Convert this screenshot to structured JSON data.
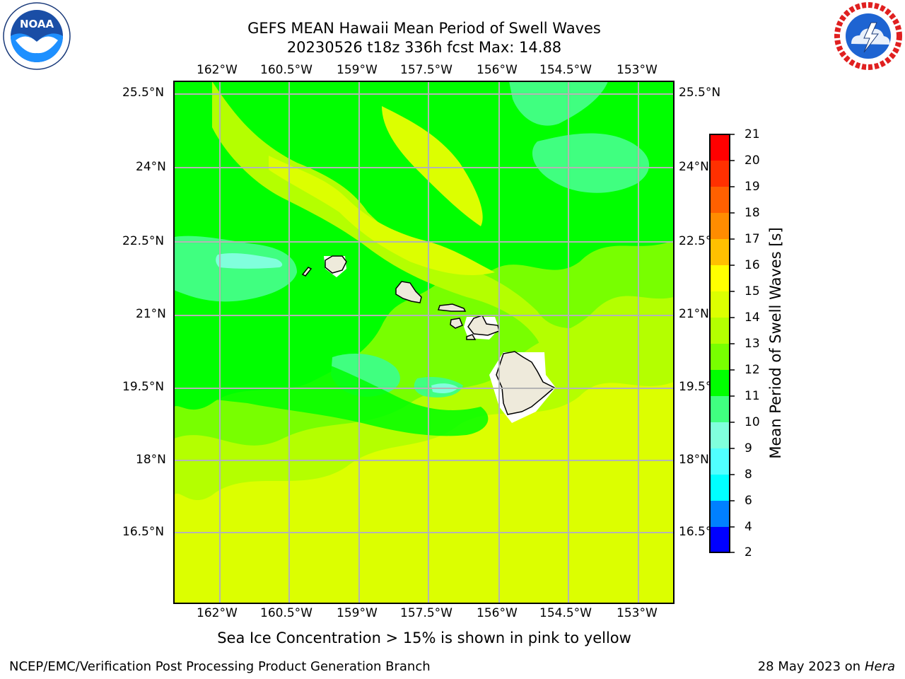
{
  "title_line1": "GEFS MEAN Hawaii Mean Period of Swell Waves",
  "title_line2": "20230526 t18z 336h fcst   Max: 14.88",
  "lon_labels": [
    "162°W",
    "160.5°W",
    "159°W",
    "157.5°W",
    "156°W",
    "154.5°W",
    "153°W"
  ],
  "lat_labels": [
    "25.5°N",
    "24°N",
    "22.5°N",
    "21°N",
    "19.5°N",
    "18°N",
    "16.5°N"
  ],
  "colorbar": {
    "label": "Mean Period of Swell Waves [s]",
    "ticks": [
      "21",
      "20",
      "19",
      "18",
      "17",
      "16",
      "15",
      "14",
      "13",
      "12",
      "11",
      "10",
      "9",
      "8",
      "6",
      "4",
      "2"
    ],
    "colors": [
      "#ff0000",
      "#ff3000",
      "#ff6000",
      "#ff8c00",
      "#ffc000",
      "#ffff00",
      "#dcff00",
      "#b4ff00",
      "#78ff00",
      "#00ff00",
      "#00f050",
      "#40ff80",
      "#80ffdc",
      "#50ffff",
      "#00ffff",
      "#0080ff",
      "#0000ff"
    ]
  },
  "subtitle": "Sea Ice Concentration > 15% is shown in pink to yellow",
  "footer_left": "NCEP/EMC/Verification Post Processing Product Generation Branch",
  "footer_right_date": "28 May 2023 on",
  "footer_right_host": "Hera",
  "logos": {
    "left": "noaa-logo",
    "right": "nws-logo",
    "right_text": "NATIONAL WEATHER SERVICE",
    "left_text": "NATIONAL OCEANIC AND ATMOSPHERIC ADMINISTRATION U.S. DEPARTMENT OF COMMERCE"
  },
  "islands": [
    "Niihau",
    "Kauai",
    "Oahu",
    "Molokai",
    "Lanai",
    "Maui",
    "Kahoolawe",
    "Hawaii"
  ]
}
